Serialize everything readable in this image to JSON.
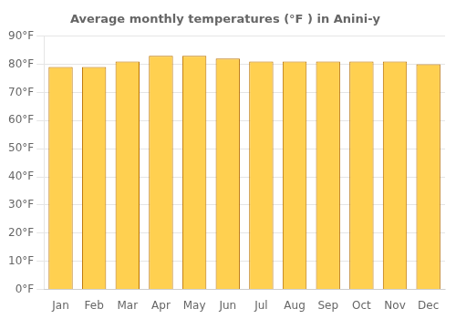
{
  "chart_data": {
    "type": "bar",
    "title": "Average monthly temperatures (°F ) in Anini-y",
    "categories": [
      "Jan",
      "Feb",
      "Mar",
      "Apr",
      "May",
      "Jun",
      "Jul",
      "Aug",
      "Sep",
      "Oct",
      "Nov",
      "Dec"
    ],
    "values": [
      79,
      79,
      81,
      83,
      83,
      82,
      81,
      81,
      81,
      81,
      81,
      80
    ],
    "color": "#FFD050",
    "ylim": [
      0,
      90
    ],
    "yticks": [
      {
        "value": 0,
        "label": "0°F"
      },
      {
        "value": 10,
        "label": "10°F"
      },
      {
        "value": 20,
        "label": "20°F"
      },
      {
        "value": 30,
        "label": "30°F"
      },
      {
        "value": 40,
        "label": "40°F"
      },
      {
        "value": 50,
        "label": "50°F"
      },
      {
        "value": 60,
        "label": "60°F"
      },
      {
        "value": 70,
        "label": "70°F"
      },
      {
        "value": 80,
        "label": "80°F"
      },
      {
        "value": 90,
        "label": "90°F"
      }
    ],
    "grid": true
  }
}
